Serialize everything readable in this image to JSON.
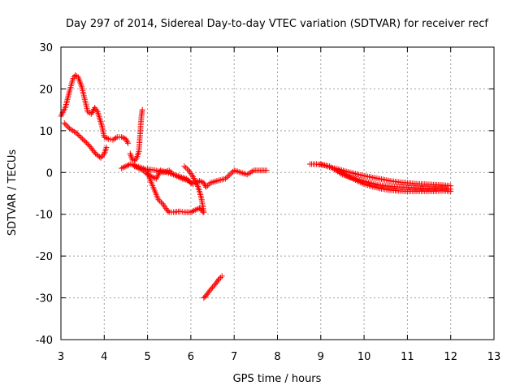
{
  "chart_data": {
    "type": "scatter",
    "title": "Day 297 of 2014, Sidereal Day-to-day VTEC variation (SDTVAR) for receiver recf",
    "xlabel": "GPS time / hours",
    "ylabel": "SDTVAR / TECUs",
    "xlim": [
      3,
      13
    ],
    "ylim": [
      -40,
      30
    ],
    "xticks": [
      3,
      4,
      5,
      6,
      7,
      8,
      9,
      10,
      11,
      12,
      13
    ],
    "yticks": [
      -40,
      -30,
      -20,
      -10,
      0,
      10,
      20,
      30
    ],
    "grid": true,
    "marker": "+",
    "colors": {
      "series": "#ff0000",
      "grid": "#a0a0a0",
      "axis": "#000000"
    },
    "series": [
      {
        "name": "SDTVAR",
        "segments": [
          [
            [
              3.0,
              13.5
            ],
            [
              3.1,
              15.5
            ],
            [
              3.2,
              19.5
            ],
            [
              3.28,
              22.5
            ],
            [
              3.33,
              23.3
            ],
            [
              3.4,
              22.8
            ],
            [
              3.48,
              20.5
            ],
            [
              3.55,
              17.5
            ],
            [
              3.62,
              14.5
            ],
            [
              3.7,
              14.0
            ],
            [
              3.78,
              15.5
            ],
            [
              3.85,
              14.5
            ],
            [
              3.95,
              11.0
            ],
            [
              4.0,
              8.5
            ],
            [
              4.1,
              8.0
            ],
            [
              4.2,
              7.8
            ],
            [
              4.3,
              8.5
            ],
            [
              4.4,
              8.5
            ],
            [
              4.5,
              8.0
            ],
            [
              4.55,
              7.0
            ]
          ],
          [
            [
              3.08,
              11.8
            ],
            [
              3.2,
              10.5
            ],
            [
              3.35,
              9.5
            ],
            [
              3.5,
              8.0
            ],
            [
              3.65,
              6.5
            ],
            [
              3.8,
              4.5
            ],
            [
              3.92,
              3.5
            ],
            [
              4.0,
              4.5
            ],
            [
              4.05,
              6.0
            ]
          ],
          [
            [
              4.4,
              1.0
            ],
            [
              4.5,
              1.5
            ],
            [
              4.6,
              2.0
            ],
            [
              4.75,
              1.5
            ],
            [
              4.9,
              1.0
            ],
            [
              5.0,
              0.5
            ],
            [
              5.05,
              -1.5
            ],
            [
              5.15,
              -4.0
            ],
            [
              5.25,
              -6.5
            ],
            [
              5.35,
              -7.5
            ],
            [
              5.45,
              -9.0
            ],
            [
              5.5,
              -9.5
            ],
            [
              5.6,
              -9.5
            ],
            [
              5.75,
              -9.3
            ],
            [
              5.85,
              -9.5
            ],
            [
              6.0,
              -9.5
            ],
            [
              6.1,
              -9.0
            ],
            [
              6.2,
              -8.5
            ],
            [
              6.28,
              -9.5
            ]
          ],
          [
            [
              5.0,
              0.8
            ],
            [
              5.2,
              0.5
            ],
            [
              5.35,
              0.0
            ],
            [
              5.5,
              0.5
            ],
            [
              5.6,
              -0.5
            ],
            [
              5.75,
              -1.0
            ],
            [
              5.9,
              -1.5
            ],
            [
              6.0,
              -2.5
            ],
            [
              6.1,
              -2.5
            ],
            [
              6.2,
              -2.0
            ],
            [
              6.3,
              -2.5
            ],
            [
              6.35,
              -3.5
            ],
            [
              6.45,
              -2.5
            ],
            [
              6.6,
              -2.0
            ],
            [
              6.8,
              -1.5
            ],
            [
              6.9,
              -0.5
            ],
            [
              7.0,
              0.5
            ],
            [
              7.15,
              0.0
            ],
            [
              7.3,
              -0.5
            ],
            [
              7.45,
              0.5
            ],
            [
              7.6,
              0.5
            ],
            [
              7.75,
              0.5
            ]
          ],
          [
            [
              4.7,
              1.5
            ],
            [
              4.8,
              1.0
            ],
            [
              4.9,
              0.5
            ],
            [
              5.0,
              -0.5
            ],
            [
              5.1,
              -1.0
            ],
            [
              5.2,
              -1.5
            ],
            [
              5.3,
              0.5
            ],
            [
              5.45,
              0.0
            ],
            [
              5.6,
              -0.5
            ],
            [
              5.8,
              -1.5
            ],
            [
              5.95,
              -2.0
            ],
            [
              6.05,
              -2.8
            ]
          ],
          [
            [
              5.85,
              1.5
            ],
            [
              5.95,
              0.5
            ],
            [
              6.05,
              -1.0
            ],
            [
              6.15,
              -3.0
            ],
            [
              6.2,
              -4.5
            ],
            [
              6.25,
              -6.5
            ],
            [
              6.3,
              -9.5
            ]
          ],
          [
            [
              6.3,
              -30.0
            ],
            [
              6.35,
              -29.5
            ],
            [
              6.42,
              -28.5
            ],
            [
              6.5,
              -27.5
            ],
            [
              6.58,
              -26.5
            ],
            [
              6.65,
              -25.5
            ],
            [
              6.72,
              -24.8
            ]
          ],
          [
            [
              4.6,
              4.5
            ],
            [
              4.65,
              3.0
            ],
            [
              4.7,
              2.8
            ],
            [
              4.75,
              3.5
            ],
            [
              4.8,
              5.0
            ],
            [
              4.82,
              8.0
            ],
            [
              4.84,
              11.0
            ],
            [
              4.86,
              13.5
            ],
            [
              4.88,
              15.0
            ]
          ],
          [
            [
              8.75,
              2.0
            ],
            [
              8.9,
              2.0
            ],
            [
              9.05,
              1.8
            ],
            [
              9.2,
              1.5
            ],
            [
              9.35,
              0.5
            ],
            [
              9.5,
              -0.5
            ],
            [
              9.7,
              -1.2
            ],
            [
              9.9,
              -1.8
            ],
            [
              10.1,
              -2.4
            ],
            [
              10.3,
              -2.9
            ],
            [
              10.5,
              -3.2
            ],
            [
              10.7,
              -3.4
            ],
            [
              10.9,
              -3.5
            ],
            [
              11.1,
              -3.6
            ],
            [
              11.3,
              -3.7
            ],
            [
              11.5,
              -3.8
            ],
            [
              11.7,
              -3.8
            ],
            [
              11.9,
              -3.9
            ],
            [
              12.0,
              -4.0
            ]
          ],
          [
            [
              9.0,
              2.0
            ],
            [
              9.2,
              1.3
            ],
            [
              9.4,
              0.8
            ],
            [
              9.6,
              0.2
            ],
            [
              9.8,
              -0.3
            ],
            [
              10.0,
              -0.8
            ],
            [
              10.2,
              -1.2
            ],
            [
              10.4,
              -1.6
            ],
            [
              10.6,
              -2.0
            ],
            [
              10.8,
              -2.3
            ],
            [
              11.0,
              -2.5
            ],
            [
              11.2,
              -2.7
            ],
            [
              11.4,
              -2.8
            ],
            [
              11.6,
              -2.9
            ],
            [
              11.8,
              -3.0
            ],
            [
              12.0,
              -3.2
            ]
          ],
          [
            [
              9.4,
              0.6
            ],
            [
              9.6,
              -0.8
            ],
            [
              9.8,
              -1.8
            ],
            [
              10.0,
              -2.8
            ],
            [
              10.2,
              -3.4
            ],
            [
              10.4,
              -3.9
            ],
            [
              10.6,
              -4.2
            ],
            [
              10.8,
              -4.4
            ],
            [
              11.0,
              -4.5
            ],
            [
              11.2,
              -4.5
            ],
            [
              11.4,
              -4.5
            ],
            [
              11.6,
              -4.5
            ],
            [
              11.8,
              -4.4
            ],
            [
              12.0,
              -4.5
            ]
          ]
        ]
      }
    ]
  }
}
